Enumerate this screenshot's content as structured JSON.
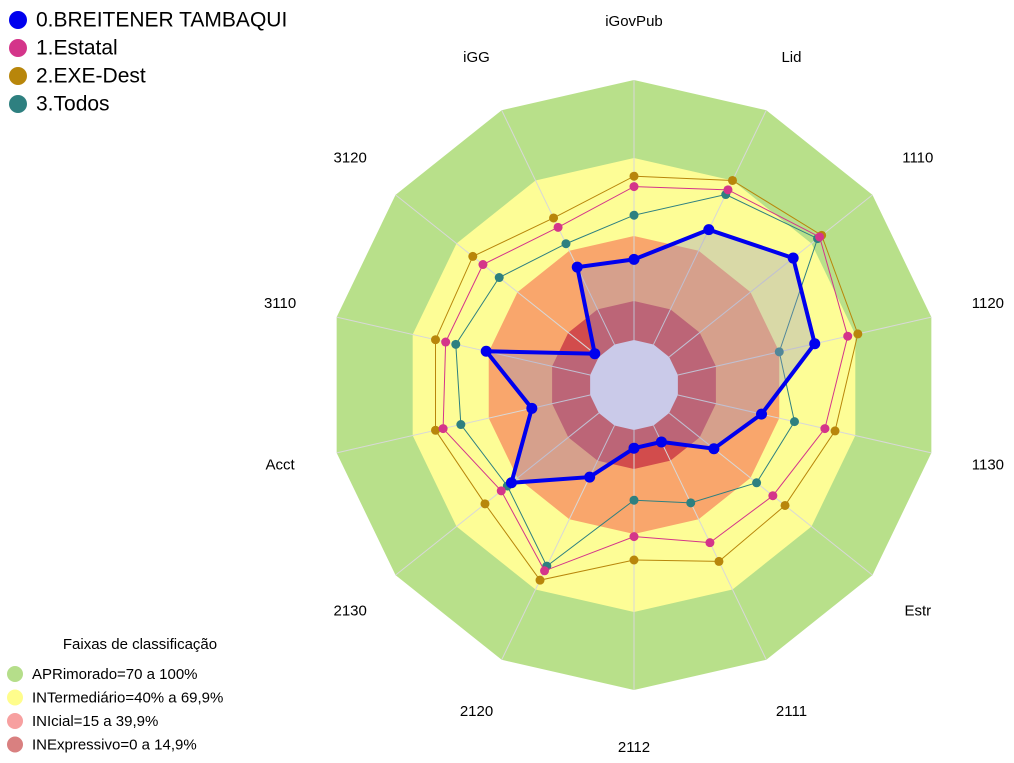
{
  "chart_data": {
    "type": "radar",
    "categories": [
      "iGovPub",
      "Lid",
      "1110",
      "1120",
      "1130",
      "Estr",
      "2111",
      "2112",
      "2120",
      "2130",
      "Acct",
      "3110",
      "3120",
      "iGG"
    ],
    "rlim": [
      0,
      100
    ],
    "series": [
      {
        "name": "0.BREITENER TAMBAQUI",
        "color": "#0000ee",
        "values": [
          31,
          49,
          61,
          54,
          33,
          22,
          7,
          7,
          22,
          43,
          23,
          41,
          2,
          33
        ]
      },
      {
        "name": "1.Estatal",
        "color": "#d4358a",
        "values": [
          59,
          66,
          74,
          67,
          58,
          51,
          50,
          41,
          62,
          48,
          58,
          57,
          57,
          50
        ]
      },
      {
        "name": "2.EXE-Dest",
        "color": "#b8860b",
        "values": [
          63,
          70,
          75,
          71,
          62,
          57,
          58,
          50,
          66,
          56,
          61,
          61,
          62,
          54
        ]
      },
      {
        "name": "3.Todos",
        "color": "#2e8080",
        "values": [
          48,
          64,
          73,
          40,
          46,
          43,
          33,
          27,
          60,
          45,
          51,
          53,
          49,
          43
        ]
      }
    ],
    "bands_title": "Faixas de classificação",
    "bands": [
      {
        "label": "APRimorado=70 a 100%",
        "from": 70,
        "to": 100,
        "color": "#b8e08a",
        "legend_color": "#b5de8a"
      },
      {
        "label": "INTermediário=40% a 69,9%",
        "from": 40,
        "to": 70,
        "color": "#fdfd96",
        "legend_color": "#fffd8c"
      },
      {
        "label": "INIcial=15 a 39,9%",
        "from": 15,
        "to": 40,
        "color": "#f9a66c",
        "legend_color": "#f7a0a0"
      },
      {
        "label": "INExpressivo=0 a 14,9%",
        "from": 0,
        "to": 15,
        "color": "#d24c4c",
        "legend_color": "#d98080"
      }
    ]
  }
}
